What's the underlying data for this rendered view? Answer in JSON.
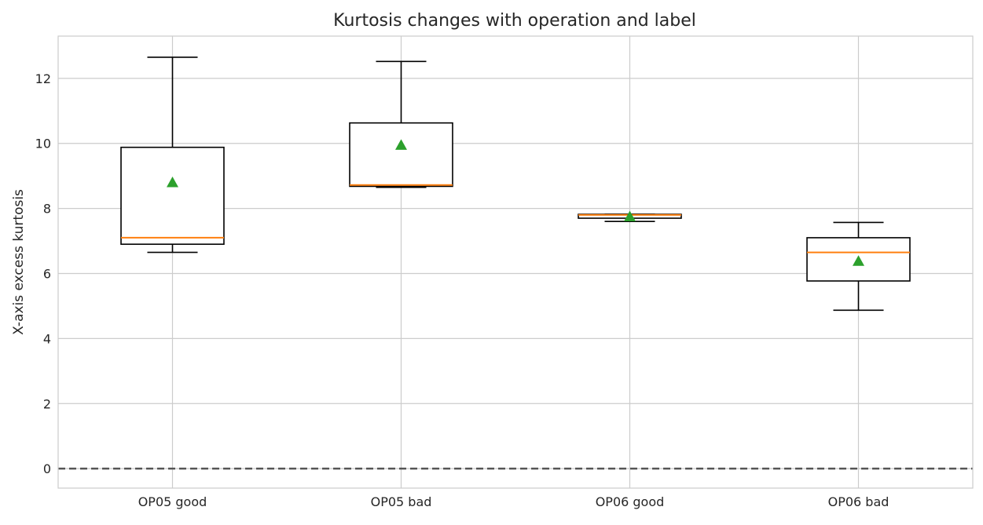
{
  "chart_data": {
    "type": "box",
    "title": "Kurtosis changes with operation and label",
    "xlabel": "",
    "ylabel": "X-axis excess kurtosis",
    "ylim": [
      -0.6,
      13.3
    ],
    "yticks": [
      0,
      2,
      4,
      6,
      8,
      10,
      12
    ],
    "grid": true,
    "reference_line": {
      "y": 0,
      "style": "dashed",
      "color": "#555555"
    },
    "colors": {
      "box": "#000000",
      "median": "#ff7f0e",
      "mean": "#2ca02c",
      "grid": "#cccccc",
      "frame": "#cccccc"
    },
    "categories": [
      "OP05 good",
      "OP05 bad",
      "OP06 good",
      "OP06 bad"
    ],
    "boxes": [
      {
        "whisker_low": 6.65,
        "q1": 6.9,
        "median": 7.1,
        "q3": 9.88,
        "whisker_high": 12.65,
        "mean": 8.8
      },
      {
        "whisker_low": 8.65,
        "q1": 8.68,
        "median": 8.72,
        "q3": 10.63,
        "whisker_high": 12.52,
        "mean": 9.95
      },
      {
        "whisker_low": 7.6,
        "q1": 7.7,
        "median": 7.8,
        "q3": 7.82,
        "whisker_high": 7.82,
        "mean": 7.75
      },
      {
        "whisker_low": 4.87,
        "q1": 5.77,
        "median": 6.65,
        "q3": 7.1,
        "whisker_high": 7.57,
        "mean": 6.38
      }
    ]
  }
}
